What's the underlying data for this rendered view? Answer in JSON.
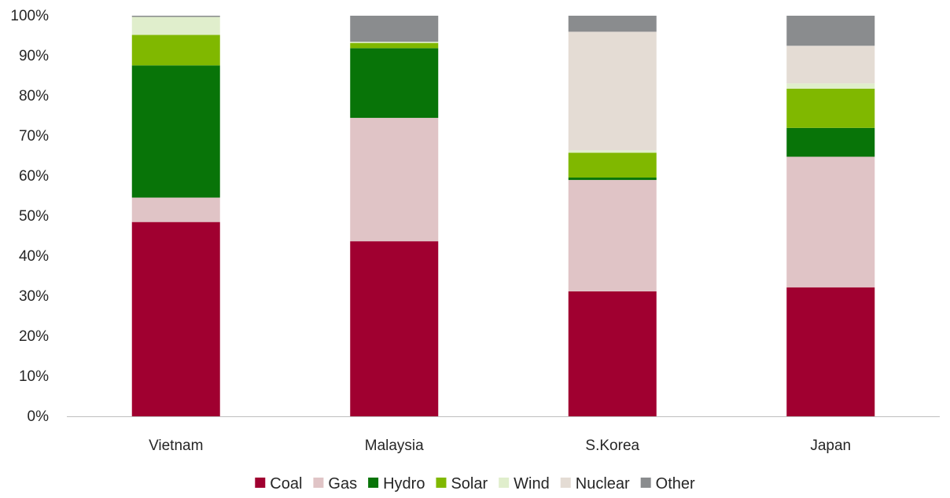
{
  "chart_data": {
    "type": "bar",
    "stacked": true,
    "percent_stacked": true,
    "categories": [
      "Vietnam",
      "Malaysia",
      "S.Korea",
      "Japan"
    ],
    "y_ticks": [
      "0%",
      "10%",
      "20%",
      "30%",
      "40%",
      "50%",
      "60%",
      "70%",
      "80%",
      "90%",
      "100%"
    ],
    "ylim": [
      0,
      100
    ],
    "grid": false,
    "legend_position": "bottom",
    "series": [
      {
        "name": "Coal",
        "color": "#a00030",
        "values": [
          48.5,
          43.7,
          31.2,
          32.2
        ]
      },
      {
        "name": "Gas",
        "color": "#e0c4c6",
        "values": [
          6.1,
          30.8,
          27.8,
          32.6
        ]
      },
      {
        "name": "Hydro",
        "color": "#087408",
        "values": [
          33.0,
          17.4,
          0.6,
          7.2
        ]
      },
      {
        "name": "Solar",
        "color": "#80b800",
        "values": [
          7.6,
          1.3,
          6.2,
          9.8
        ]
      },
      {
        "name": "Wind",
        "color": "#e0eecc",
        "values": [
          4.5,
          0.3,
          0.6,
          1.3
        ]
      },
      {
        "name": "Nuclear",
        "color": "#e4dcd4",
        "values": [
          0.0,
          0.0,
          29.6,
          9.4
        ]
      },
      {
        "name": "Other",
        "color": "#8a8c8e",
        "values": [
          0.3,
          6.5,
          4.0,
          7.5
        ]
      }
    ]
  }
}
